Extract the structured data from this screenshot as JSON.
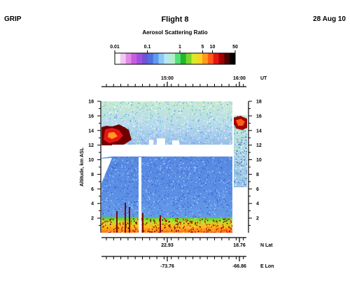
{
  "header": {
    "left": "GRIP",
    "title": "Flight 8",
    "right": "28 Aug 10"
  },
  "colorbar": {
    "title": "Aerosol Scattering Ratio",
    "tick_labels": [
      "0.01",
      "0.1",
      "1",
      "5",
      "10",
      "50"
    ],
    "tick_values": [
      0.01,
      0.1,
      1,
      5,
      10,
      50
    ],
    "range": [
      0.01,
      50
    ],
    "scale": "log",
    "colors": [
      "#ffffff",
      "#f2c8f2",
      "#e28ae6",
      "#c75ee0",
      "#a34ee0",
      "#6e54d6",
      "#4f6fe0",
      "#5d9af0",
      "#8cc8f7",
      "#b8e6f5",
      "#b2f0c8",
      "#57e07a",
      "#1eb82c",
      "#7ad42a",
      "#d8e82a",
      "#ffd21e",
      "#ff9a1e",
      "#ff5a14",
      "#e81414",
      "#a00000",
      "#500000",
      "#000000"
    ]
  },
  "chart_data": {
    "type": "heatmap",
    "title": "Flight 8",
    "variable": "Aerosol Scattering Ratio",
    "ylabel": "Altitude, km ASL",
    "ylim": [
      0,
      18
    ],
    "yticks": [
      2,
      4,
      6,
      8,
      10,
      12,
      14,
      16,
      18
    ],
    "time_axis": {
      "label": "UT",
      "ticks": [
        "15:00",
        "16:00"
      ]
    },
    "lat_axis": {
      "label": "N Lat",
      "ticks": [
        "22.93",
        "18.76"
      ]
    },
    "lon_axis": {
      "label": "E Lon",
      "ticks": [
        "-73.76",
        "-66.86"
      ]
    },
    "features": {
      "aircraft_level_gap_km": [
        10.8,
        12.0
      ],
      "clean_troposphere_ratio": 0.7,
      "upper_troposphere_ratio": 0.2,
      "boundary_layer_top_km": 1.2,
      "cloud_tops_km": [
        12,
        15
      ]
    }
  }
}
